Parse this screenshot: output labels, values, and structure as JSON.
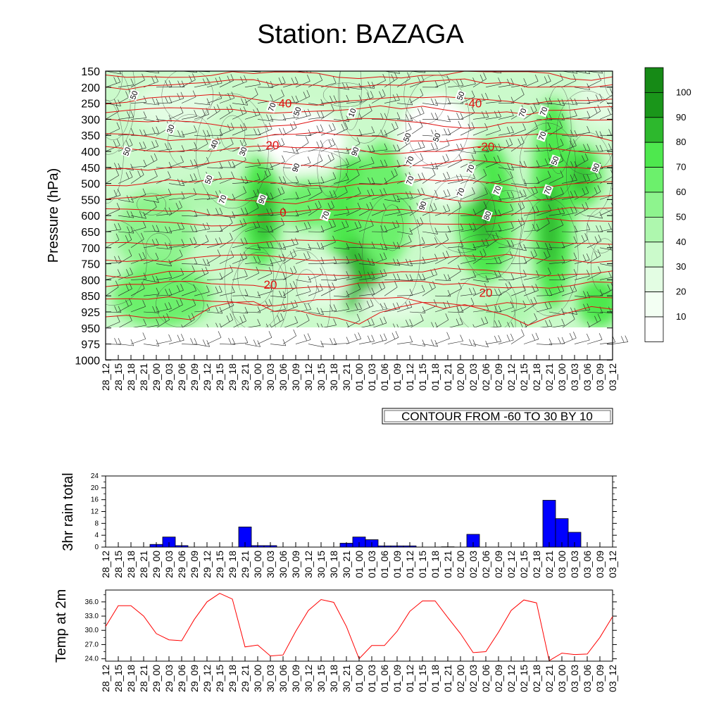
{
  "title": "Station: BAZAGA",
  "contour_note": "CONTOUR FROM -60 TO 30 BY 10",
  "chart_data": [
    {
      "type": "heatmap",
      "name": "relative humidity cross-section with temperature contours and wind barbs",
      "ylabel": "Pressure (hPa)",
      "y_scale": "inverted",
      "y_ticks": [
        "150",
        "200",
        "250",
        "300",
        "350",
        "400",
        "450",
        "500",
        "550",
        "600",
        "650",
        "700",
        "750",
        "800",
        "850",
        "925",
        "950",
        "975",
        "1000"
      ],
      "x_ticks": [
        "28_12",
        "28_15",
        "28_18",
        "28_21",
        "29_00",
        "29_03",
        "29_06",
        "29_09",
        "29_12",
        "29_15",
        "29_18",
        "29_21",
        "30_00",
        "30_03",
        "30_06",
        "30_09",
        "30_12",
        "30_15",
        "30_18",
        "30_21",
        "01_00",
        "01_03",
        "01_06",
        "01_09",
        "01_12",
        "01_15",
        "01_18",
        "01_21",
        "02_00",
        "02_03",
        "02_06",
        "02_09",
        "02_12",
        "02_15",
        "02_18",
        "02_21",
        "03_00",
        "03_03",
        "03_06",
        "03_09",
        "03_12"
      ],
      "colorbar": {
        "labels": [
          "100",
          "90",
          "80",
          "70",
          "60",
          "50",
          "40",
          "30",
          "20",
          "10"
        ],
        "colors": [
          "#1a961a",
          "#2db82d",
          "#4ee84e",
          "#6cf06c",
          "#8ef48e",
          "#aef7ae",
          "#cbfacb",
          "#e3fde3",
          "#f3fff3",
          "#ffffff"
        ]
      },
      "temperature_contour_labels": [
        {
          "level": "-40",
          "time": "30_06",
          "pressure": "250"
        },
        {
          "level": "-40",
          "time": "02_03",
          "pressure": "250"
        },
        {
          "level": "-20",
          "time": "30_03",
          "pressure": "380"
        },
        {
          "level": "-20",
          "time": "02_06",
          "pressure": "385"
        },
        {
          "level": "0",
          "time": "30_06",
          "pressure": "590"
        },
        {
          "level": "20",
          "time": "30_03",
          "pressure": "815"
        },
        {
          "level": "20",
          "time": "02_06",
          "pressure": "840"
        }
      ],
      "rh_contour_labels": [
        "50",
        "30",
        "50",
        "70",
        "50",
        "40",
        "50",
        "90",
        "70",
        "30",
        "10",
        "50",
        "50",
        "70",
        "90",
        "50",
        "70",
        "90",
        "70",
        "70",
        "50",
        "90",
        "70",
        "70",
        "70",
        "70",
        "70",
        "90",
        "70",
        "80"
      ]
    },
    {
      "type": "bar",
      "ylabel": "3hr rain total",
      "ylim": [
        0,
        24
      ],
      "y_ticks": [
        "0",
        "4",
        "8",
        "12",
        "16",
        "20",
        "24"
      ],
      "categories": [
        "28_12",
        "28_15",
        "28_18",
        "28_21",
        "29_00",
        "29_03",
        "29_06",
        "29_09",
        "29_12",
        "29_15",
        "29_18",
        "29_21",
        "30_00",
        "30_03",
        "30_06",
        "30_09",
        "30_12",
        "30_15",
        "30_18",
        "30_21",
        "01_00",
        "01_03",
        "01_06",
        "01_09",
        "01_12",
        "01_15",
        "01_18",
        "01_21",
        "02_00",
        "02_03",
        "02_06",
        "02_09",
        "02_12",
        "02_15",
        "02_18",
        "02_21",
        "03_00",
        "03_03",
        "03_06",
        "03_09",
        "03_12"
      ],
      "values": [
        0,
        0,
        0,
        0,
        0.9,
        3.4,
        0.5,
        0,
        0,
        0,
        0,
        6.8,
        0.5,
        0.5,
        0,
        0,
        0,
        0,
        0,
        1.3,
        3.4,
        2.5,
        0.4,
        0.4,
        0.4,
        0,
        0,
        0.1,
        0,
        4.3,
        0,
        0,
        0,
        0,
        0,
        15.8,
        9.6,
        5.0,
        0,
        0,
        0
      ],
      "bar_color": "#0000ff"
    },
    {
      "type": "line",
      "ylabel": "Temp at 2m",
      "ylim": [
        23.5,
        38.5
      ],
      "y_ticks": [
        "24.0",
        "27.0",
        "30.0",
        "33.0",
        "36.0"
      ],
      "categories": [
        "28_12",
        "28_15",
        "28_18",
        "28_21",
        "29_00",
        "29_03",
        "29_06",
        "29_09",
        "29_12",
        "29_15",
        "29_18",
        "29_21",
        "30_00",
        "30_03",
        "30_06",
        "30_09",
        "30_12",
        "30_15",
        "30_18",
        "30_21",
        "01_00",
        "01_03",
        "01_06",
        "01_09",
        "01_12",
        "01_15",
        "01_18",
        "01_21",
        "02_00",
        "02_03",
        "02_06",
        "02_09",
        "02_12",
        "02_15",
        "02_18",
        "02_21",
        "03_00",
        "03_03",
        "03_06",
        "03_09",
        "03_12"
      ],
      "values": [
        30.8,
        35.2,
        35.2,
        33.0,
        29.3,
        28.0,
        27.8,
        32.3,
        36.0,
        37.8,
        36.6,
        26.5,
        26.9,
        24.6,
        24.8,
        29.8,
        34.2,
        36.5,
        35.9,
        30.8,
        24.0,
        26.8,
        26.8,
        29.8,
        34.0,
        36.2,
        36.2,
        32.7,
        29.3,
        25.3,
        25.5,
        29.6,
        34.2,
        36.4,
        35.8,
        23.6,
        25.2,
        24.9,
        25.0,
        28.5,
        32.9
      ],
      "line_color": "#ff0000"
    }
  ]
}
